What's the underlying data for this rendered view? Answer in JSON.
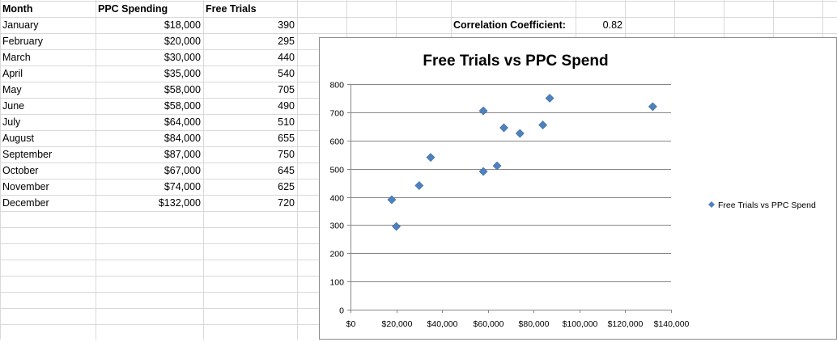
{
  "sheet": {
    "headers": [
      "Month",
      "PPC Spending",
      "Free Trials"
    ],
    "rows": [
      {
        "month": "January",
        "spending": "$18,000",
        "trials": "390"
      },
      {
        "month": "February",
        "spending": "$20,000",
        "trials": "295"
      },
      {
        "month": "March",
        "spending": "$30,000",
        "trials": "440"
      },
      {
        "month": "April",
        "spending": "$35,000",
        "trials": "540"
      },
      {
        "month": "May",
        "spending": "$58,000",
        "trials": "705"
      },
      {
        "month": "June",
        "spending": "$58,000",
        "trials": "490"
      },
      {
        "month": "July",
        "spending": "$64,000",
        "trials": "510"
      },
      {
        "month": "August",
        "spending": "$84,000",
        "trials": "655"
      },
      {
        "month": "September",
        "spending": "$87,000",
        "trials": "750"
      },
      {
        "month": "October",
        "spending": "$67,000",
        "trials": "645"
      },
      {
        "month": "November",
        "spending": "$74,000",
        "trials": "625"
      },
      {
        "month": "December",
        "spending": "$132,000",
        "trials": "720"
      }
    ],
    "correlation_label": "Correlation Coefficient:",
    "correlation_value": "0.82"
  },
  "chart_data": {
    "type": "scatter",
    "title": "Free Trials vs PPC Spend",
    "xlabel": "",
    "ylabel": "",
    "xlim": [
      0,
      140000
    ],
    "ylim": [
      0,
      800
    ],
    "x_ticks": [
      0,
      20000,
      40000,
      60000,
      80000,
      100000,
      120000,
      140000
    ],
    "x_tick_labels": [
      "$0",
      "$20,000",
      "$40,000",
      "$60,000",
      "$80,000",
      "$100,000",
      "$120,000",
      "$140,000"
    ],
    "y_ticks": [
      0,
      100,
      200,
      300,
      400,
      500,
      600,
      700,
      800
    ],
    "y_tick_labels": [
      "0",
      "100",
      "200",
      "300",
      "400",
      "500",
      "600",
      "700",
      "800"
    ],
    "grid": "horizontal",
    "legend_position": "right",
    "marker_color": "#4f81bd",
    "series": [
      {
        "name": "Free Trials vs PPC Spend",
        "points": [
          [
            18000,
            390
          ],
          [
            20000,
            295
          ],
          [
            30000,
            440
          ],
          [
            35000,
            540
          ],
          [
            58000,
            705
          ],
          [
            58000,
            490
          ],
          [
            64000,
            510
          ],
          [
            84000,
            655
          ],
          [
            87000,
            750
          ],
          [
            67000,
            645
          ],
          [
            74000,
            625
          ],
          [
            132000,
            720
          ]
        ]
      }
    ]
  }
}
